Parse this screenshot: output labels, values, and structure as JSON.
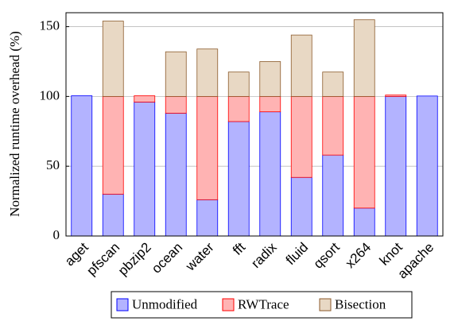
{
  "chart_data": {
    "type": "stacked_bar",
    "y_label": "Normalized runtime overhead (%)",
    "categories": [
      "aget",
      "pfscan",
      "pbzip2",
      "ocean",
      "water",
      "fft",
      "radix",
      "fluid",
      "qsort",
      "x264",
      "knot",
      "apache"
    ],
    "series": [
      {
        "name": "Unmodified",
        "color": "#b3b3ff",
        "stroke": "#0000ff",
        "values": [
          100.5,
          30,
          96,
          88,
          26,
          82,
          89,
          42,
          58,
          20,
          100,
          100.3
        ]
      },
      {
        "name": "RWTrace",
        "color": "#ffb3b3",
        "stroke": "#ff0000",
        "values": [
          0,
          70,
          4.5,
          12,
          74,
          18,
          11,
          58,
          42,
          80,
          1,
          0
        ]
      },
      {
        "name": "Bisection",
        "color": "#e8d8c4",
        "stroke": "#8b5a2b",
        "values": [
          0,
          54,
          0,
          32,
          34,
          17.5,
          25,
          44,
          17.5,
          55,
          0,
          0
        ]
      }
    ],
    "ylim": [
      0,
      160
    ],
    "yticks": [
      0,
      50,
      100,
      150
    ],
    "grid": true,
    "legend": "bottom"
  }
}
